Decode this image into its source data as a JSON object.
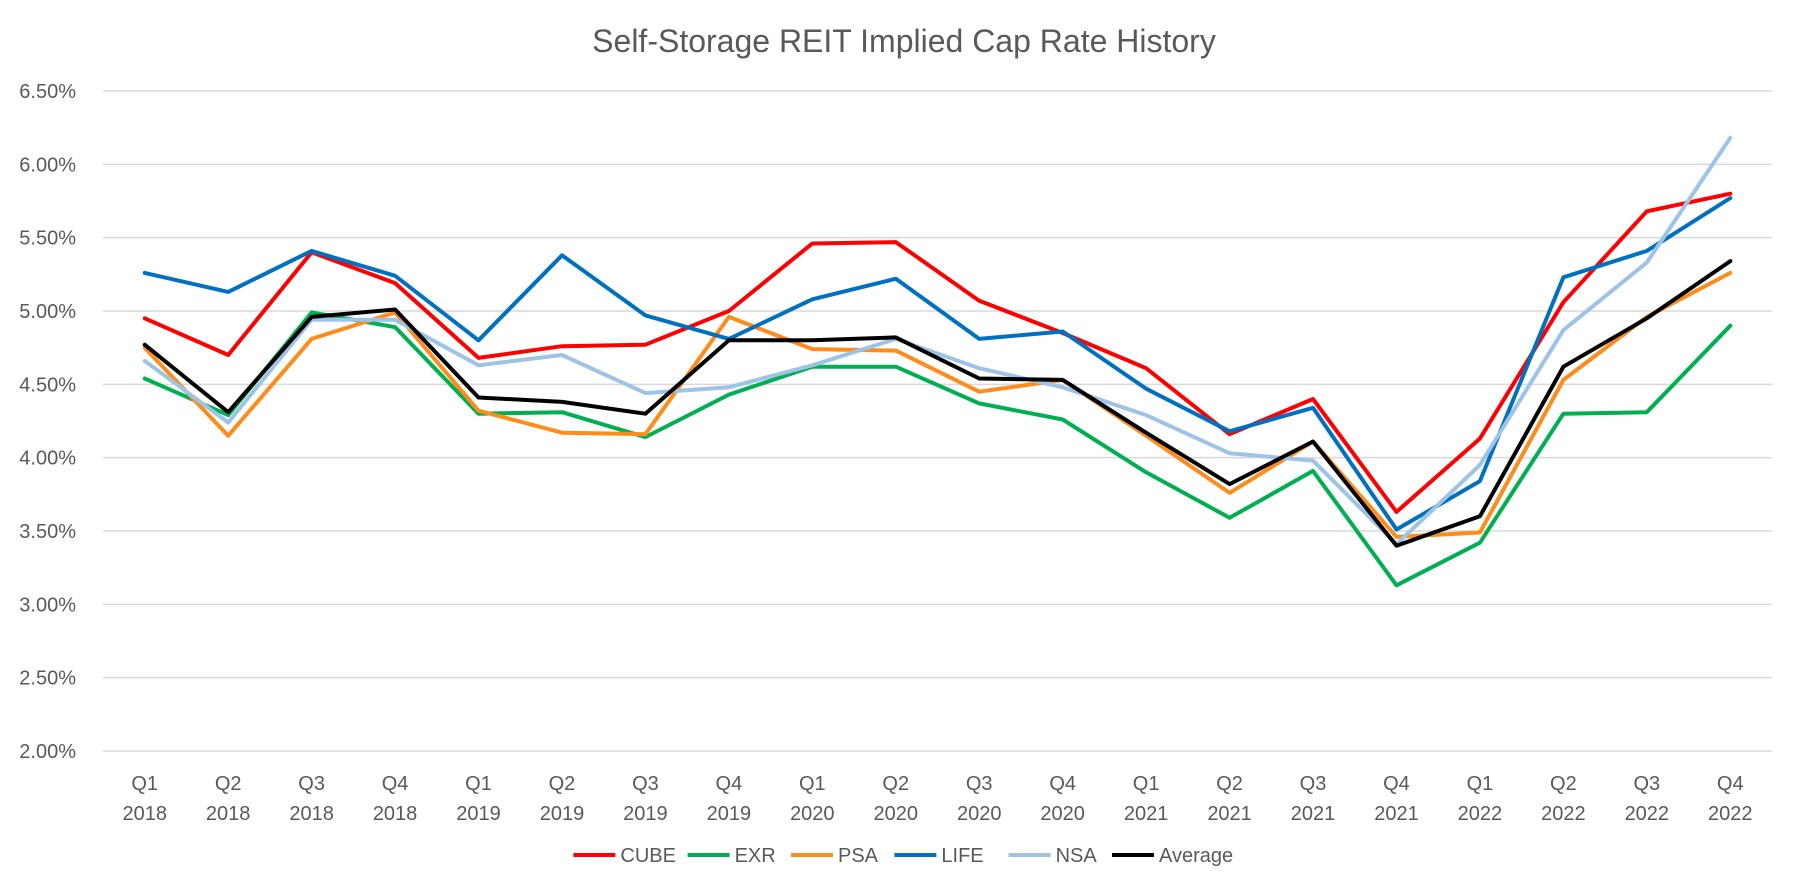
{
  "chart_data": {
    "type": "line",
    "title": "Self-Storage REIT Implied Cap Rate History",
    "xlabel": "",
    "ylabel": "",
    "categories": [
      [
        "Q1",
        "2018"
      ],
      [
        "Q2",
        "2018"
      ],
      [
        "Q3",
        "2018"
      ],
      [
        "Q4",
        "2018"
      ],
      [
        "Q1",
        "2019"
      ],
      [
        "Q2",
        "2019"
      ],
      [
        "Q3",
        "2019"
      ],
      [
        "Q4",
        "2019"
      ],
      [
        "Q1",
        "2020"
      ],
      [
        "Q2",
        "2020"
      ],
      [
        "Q3",
        "2020"
      ],
      [
        "Q4",
        "2020"
      ],
      [
        "Q1",
        "2021"
      ],
      [
        "Q2",
        "2021"
      ],
      [
        "Q3",
        "2021"
      ],
      [
        "Q4",
        "2021"
      ],
      [
        "Q1",
        "2022"
      ],
      [
        "Q2",
        "2022"
      ],
      [
        "Q3",
        "2022"
      ],
      [
        "Q4",
        "2022"
      ]
    ],
    "ylim": [
      2.0,
      6.5
    ],
    "yticks": [
      2.0,
      2.5,
      3.0,
      3.5,
      4.0,
      4.5,
      5.0,
      5.5,
      6.0,
      6.5
    ],
    "ytick_labels": [
      "2.00%",
      "2.50%",
      "3.00%",
      "3.50%",
      "4.00%",
      "4.50%",
      "5.00%",
      "5.50%",
      "6.00%",
      "6.50%"
    ],
    "grid": true,
    "legend_position": "bottom",
    "series": [
      {
        "name": "CUBE",
        "color": "#ff0000",
        "values": [
          4.95,
          4.7,
          5.4,
          5.19,
          4.68,
          4.76,
          4.77,
          5.0,
          5.46,
          5.47,
          5.07,
          4.85,
          4.61,
          4.16,
          4.4,
          3.63,
          4.13,
          5.06,
          5.68,
          5.8
        ]
      },
      {
        "name": "EXR",
        "color": "#00b050",
        "values": [
          4.54,
          4.29,
          4.99,
          4.89,
          4.3,
          4.31,
          4.14,
          4.43,
          4.62,
          4.62,
          4.37,
          4.26,
          3.9,
          3.59,
          3.91,
          3.13,
          3.42,
          4.3,
          4.31,
          4.9
        ]
      },
      {
        "name": "PSA",
        "color": "#ff8c1a",
        "values": [
          4.75,
          4.15,
          4.81,
          4.99,
          4.32,
          4.17,
          4.16,
          4.96,
          4.74,
          4.73,
          4.45,
          4.53,
          4.15,
          3.76,
          4.11,
          3.46,
          3.49,
          4.53,
          4.96,
          5.26
        ]
      },
      {
        "name": "LIFE",
        "color": "#0070c0",
        "values": [
          5.26,
          5.13,
          5.41,
          5.24,
          4.8,
          5.38,
          4.97,
          4.81,
          5.08,
          5.22,
          4.81,
          4.86,
          4.47,
          4.18,
          4.34,
          3.51,
          3.84,
          5.23,
          5.41,
          5.77
        ]
      },
      {
        "name": "NSA",
        "color": "#9dc3e6",
        "values": [
          4.66,
          4.24,
          4.94,
          4.94,
          4.63,
          4.7,
          4.44,
          4.48,
          4.63,
          4.81,
          4.61,
          4.48,
          4.29,
          4.03,
          3.98,
          3.41,
          3.95,
          4.87,
          5.33,
          6.18
        ]
      },
      {
        "name": "Average",
        "color": "#000000",
        "values": [
          4.77,
          4.31,
          4.96,
          5.01,
          4.41,
          4.38,
          4.3,
          4.8,
          4.8,
          4.82,
          4.54,
          4.53,
          4.17,
          3.82,
          4.11,
          3.4,
          3.6,
          4.62,
          4.95,
          5.34
        ]
      }
    ]
  }
}
